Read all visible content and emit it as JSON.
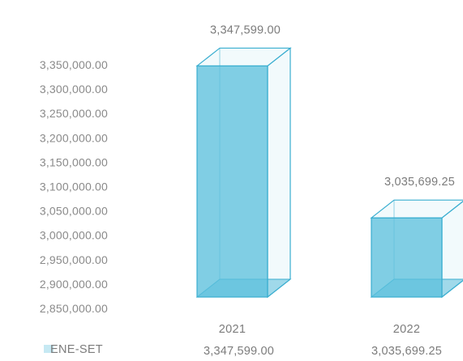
{
  "chart_data": {
    "type": "bar",
    "style": "3d-column",
    "categories": [
      "2021",
      "2022"
    ],
    "series": [
      {
        "name": "ENE-SET",
        "values": [
          3347599.0,
          3035699.25
        ],
        "labels": [
          "3,347,599.00",
          "3,035,699.25"
        ],
        "color": "#5cc0dc",
        "edge_color": "#3aaed0"
      }
    ],
    "y_ticks": [
      "3,350,000.00",
      "3,300,000.00",
      "3,250,000.00",
      "3,200,000.00",
      "3,150,000.00",
      "3,100,000.00",
      "3,050,000.00",
      "3,000,000.00",
      "2,950,000.00",
      "2,900,000.00",
      "2,850,000.00"
    ],
    "ylim": [
      2850000,
      3350000
    ],
    "grid": false,
    "legend": "bottom-left",
    "data_table": true,
    "title": "",
    "xlabel": "",
    "ylabel": ""
  }
}
